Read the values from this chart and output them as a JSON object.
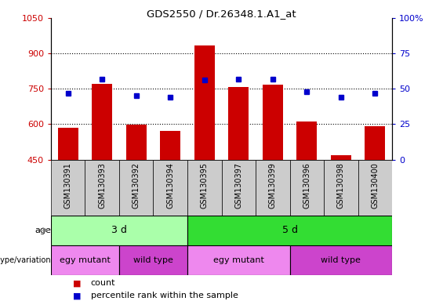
{
  "title": "GDS2550 / Dr.26348.1.A1_at",
  "samples": [
    "GSM130391",
    "GSM130393",
    "GSM130392",
    "GSM130394",
    "GSM130395",
    "GSM130397",
    "GSM130399",
    "GSM130396",
    "GSM130398",
    "GSM130400"
  ],
  "counts": [
    585,
    770,
    598,
    572,
    935,
    757,
    769,
    612,
    470,
    591
  ],
  "percentile_ranks": [
    47,
    57,
    45,
    44,
    56,
    57,
    57,
    48,
    44,
    47
  ],
  "ylim_left": [
    450,
    1050
  ],
  "ylim_right": [
    0,
    100
  ],
  "yticks_left": [
    450,
    600,
    750,
    900,
    1050
  ],
  "yticks_right": [
    0,
    25,
    50,
    75,
    100
  ],
  "bar_color": "#cc0000",
  "dot_color": "#0000cc",
  "age_labels": [
    {
      "label": "3 d",
      "start": 0,
      "end": 4
    },
    {
      "label": "5 d",
      "start": 4,
      "end": 10
    }
  ],
  "genotype_labels": [
    {
      "label": "egy mutant",
      "start": 0,
      "end": 2
    },
    {
      "label": "wild type",
      "start": 2,
      "end": 4
    },
    {
      "label": "egy mutant",
      "start": 4,
      "end": 7
    },
    {
      "label": "wild type",
      "start": 7,
      "end": 10
    }
  ],
  "age_color_3d": "#aaffaa",
  "age_color_5d": "#33dd33",
  "genotype_color_light": "#ee88ee",
  "genotype_color_dark": "#cc44cc",
  "tick_label_color_left": "#cc0000",
  "tick_label_color_right": "#0000cc",
  "legend_count_color": "#cc0000",
  "legend_pct_color": "#0000cc",
  "grid_dotted_ticks": [
    600,
    750,
    900
  ],
  "xticklabel_bg": "#cccccc",
  "bar_width": 0.6
}
